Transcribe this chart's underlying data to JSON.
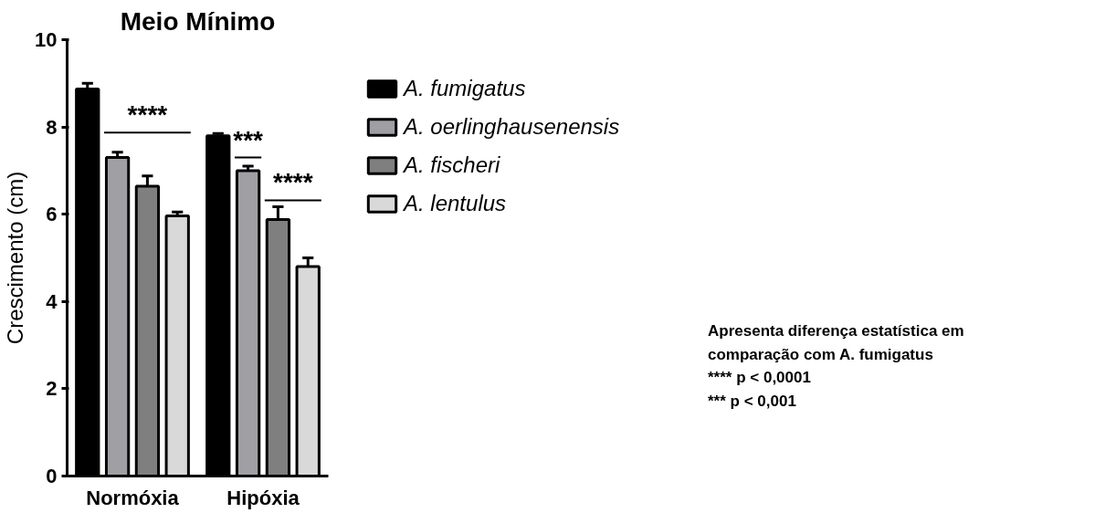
{
  "chart_data": {
    "type": "bar",
    "title": "Meio Mínimo",
    "ylabel": "Crescimento (cm)",
    "categories": [
      "Normóxia",
      "Hipóxia"
    ],
    "series": [
      {
        "name": "A. fumigatus",
        "color": "#000000",
        "values": [
          8.87,
          7.8
        ],
        "errors": [
          [
            8.87,
            9.0
          ],
          [
            7.8,
            7.85
          ]
        ]
      },
      {
        "name": "A. oerlinghausenensis",
        "color": "#a0a0a4",
        "values": [
          7.3,
          7.0
        ],
        "errors": [
          [
            7.3,
            7.42
          ],
          [
            7.0,
            7.1
          ]
        ]
      },
      {
        "name": "A. fischeri",
        "color": "#7f7f7f",
        "values": [
          6.64,
          5.88
        ],
        "errors": [
          [
            6.64,
            6.88
          ],
          [
            5.88,
            6.17
          ]
        ]
      },
      {
        "name": "A. lentulus",
        "color": "#d9d9d9",
        "values": [
          5.96,
          4.8
        ],
        "errors": [
          [
            5.96,
            6.05
          ],
          [
            4.8,
            5.0
          ]
        ]
      }
    ],
    "ylim": [
      0,
      10
    ],
    "yticks": [
      0,
      2,
      4,
      6,
      8,
      10
    ],
    "grid": false,
    "legend": "right",
    "annotations": [
      "****",
      "***",
      "****",
      "Apresenta diferença estatística em",
      "comparação com A. fumigatus",
      "**** p < 0,0001",
      "***  p < 0,001"
    ]
  }
}
